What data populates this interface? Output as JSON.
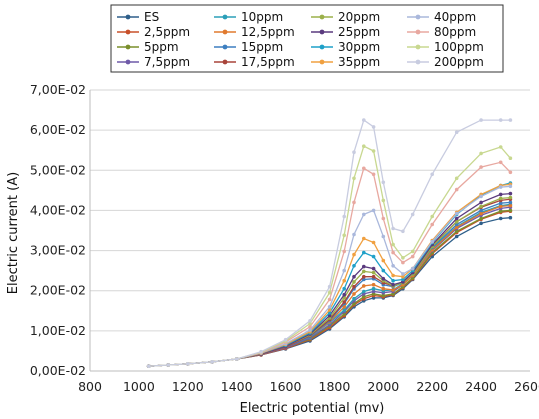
{
  "chart_data": {
    "type": "line",
    "title": "",
    "xlabel": "Electric potential (mv)",
    "ylabel": "Electric current (A)",
    "xlim": [
      800,
      2600
    ],
    "ylim": [
      0,
      0.07
    ],
    "x_ticks": [
      "800",
      "1000",
      "1200",
      "1400",
      "1600",
      "1800",
      "2000",
      "2200",
      "2400",
      "2600"
    ],
    "y_ticks": [
      "0,00E-02",
      "1,00E-02",
      "2,00E-02",
      "3,00E-02",
      "4,00E-02",
      "5,00E-02",
      "6,00E-02",
      "7,00E-02"
    ],
    "grid": "horizontal",
    "legend_placement": "top",
    "x": [
      1040,
      1120,
      1200,
      1300,
      1400,
      1500,
      1600,
      1700,
      1780,
      1840,
      1880,
      1920,
      1960,
      2000,
      2040,
      2080,
      2120,
      2200,
      2300,
      2400,
      2480,
      2520
    ],
    "series": [
      {
        "name": "ES",
        "color": "#2e5f8a",
        "values": [
          0.0012,
          0.0015,
          0.0018,
          0.0023,
          0.003,
          0.004,
          0.0055,
          0.0075,
          0.0105,
          0.0135,
          0.016,
          0.0175,
          0.0182,
          0.0182,
          0.0188,
          0.0205,
          0.0228,
          0.0285,
          0.0335,
          0.0368,
          0.038,
          0.0382
        ]
      },
      {
        "name": "2,5ppm",
        "color": "#c8502a",
        "values": [
          0.0012,
          0.0015,
          0.0018,
          0.0023,
          0.003,
          0.004,
          0.0056,
          0.0078,
          0.0108,
          0.0138,
          0.0165,
          0.018,
          0.0188,
          0.0185,
          0.019,
          0.0208,
          0.023,
          0.0292,
          0.0345,
          0.0378,
          0.0395,
          0.0398
        ]
      },
      {
        "name": "5ppm",
        "color": "#7a8f2c",
        "values": [
          0.0012,
          0.0015,
          0.0018,
          0.0023,
          0.003,
          0.0041,
          0.0058,
          0.008,
          0.0112,
          0.0142,
          0.0168,
          0.0185,
          0.0192,
          0.0188,
          0.0192,
          0.021,
          0.0232,
          0.0295,
          0.0348,
          0.038,
          0.0398,
          0.04
        ]
      },
      {
        "name": "7,5ppm",
        "color": "#6f5aa8",
        "values": [
          0.0012,
          0.0015,
          0.0018,
          0.0023,
          0.003,
          0.0041,
          0.0058,
          0.0082,
          0.0115,
          0.0148,
          0.0175,
          0.0192,
          0.0198,
          0.0195,
          0.0198,
          0.0215,
          0.0238,
          0.03,
          0.0355,
          0.0388,
          0.0405,
          0.0408
        ]
      },
      {
        "name": "10ppm",
        "color": "#2b9fb8",
        "values": [
          0.0012,
          0.0015,
          0.0018,
          0.0023,
          0.003,
          0.0042,
          0.006,
          0.0085,
          0.012,
          0.0152,
          0.018,
          0.0198,
          0.0205,
          0.02,
          0.0202,
          0.0218,
          0.024,
          0.0305,
          0.036,
          0.0395,
          0.0412,
          0.0415
        ]
      },
      {
        "name": "12,5ppm",
        "color": "#e07a2e",
        "values": [
          0.0012,
          0.0015,
          0.0018,
          0.0023,
          0.003,
          0.0042,
          0.006,
          0.0086,
          0.0122,
          0.016,
          0.0192,
          0.0212,
          0.0215,
          0.0205,
          0.0202,
          0.0215,
          0.0238,
          0.0302,
          0.0358,
          0.0392,
          0.041,
          0.0412
        ]
      },
      {
        "name": "15ppm",
        "color": "#3d7fc0",
        "values": [
          0.0012,
          0.0015,
          0.0018,
          0.0023,
          0.003,
          0.0042,
          0.006,
          0.0086,
          0.0125,
          0.0168,
          0.0205,
          0.0228,
          0.023,
          0.0215,
          0.021,
          0.022,
          0.0242,
          0.0308,
          0.0365,
          0.04,
          0.0418,
          0.042
        ]
      },
      {
        "name": "17,5ppm",
        "color": "#a8443a",
        "values": [
          0.0012,
          0.0015,
          0.0018,
          0.0023,
          0.003,
          0.0042,
          0.006,
          0.0088,
          0.0128,
          0.0172,
          0.021,
          0.0235,
          0.0235,
          0.022,
          0.0212,
          0.0222,
          0.0245,
          0.0312,
          0.0372,
          0.0408,
          0.0425,
          0.0428
        ]
      },
      {
        "name": "20ppm",
        "color": "#9bb04a",
        "values": [
          0.0012,
          0.0015,
          0.0018,
          0.0023,
          0.003,
          0.0043,
          0.0062,
          0.009,
          0.0132,
          0.0182,
          0.0222,
          0.0248,
          0.0245,
          0.0225,
          0.0212,
          0.022,
          0.0242,
          0.031,
          0.0372,
          0.041,
          0.043,
          0.0432
        ]
      },
      {
        "name": "25ppm",
        "color": "#5a3a7e",
        "values": [
          0.0012,
          0.0015,
          0.0018,
          0.0023,
          0.003,
          0.0043,
          0.0062,
          0.0092,
          0.0138,
          0.019,
          0.0235,
          0.026,
          0.0255,
          0.023,
          0.0215,
          0.0222,
          0.0245,
          0.0315,
          0.038,
          0.042,
          0.044,
          0.0442
        ]
      },
      {
        "name": "30ppm",
        "color": "#1fa0c8",
        "values": [
          0.0012,
          0.0015,
          0.0018,
          0.0023,
          0.003,
          0.0044,
          0.0064,
          0.0095,
          0.0145,
          0.0205,
          0.0262,
          0.0295,
          0.0285,
          0.025,
          0.0225,
          0.0228,
          0.025,
          0.032,
          0.039,
          0.0438,
          0.0462,
          0.0468
        ]
      },
      {
        "name": "35ppm",
        "color": "#f0a040",
        "values": [
          0.0012,
          0.0015,
          0.0018,
          0.0023,
          0.003,
          0.0044,
          0.0066,
          0.0098,
          0.0152,
          0.0225,
          0.029,
          0.033,
          0.032,
          0.0275,
          0.0238,
          0.0235,
          0.0255,
          0.0325,
          0.0395,
          0.044,
          0.0462,
          0.0465
        ]
      },
      {
        "name": "40ppm",
        "color": "#aab8dc",
        "values": [
          0.0012,
          0.0015,
          0.0018,
          0.0023,
          0.003,
          0.0045,
          0.0068,
          0.0102,
          0.016,
          0.025,
          0.034,
          0.039,
          0.04,
          0.0335,
          0.0262,
          0.0242,
          0.0255,
          0.0322,
          0.0392,
          0.0435,
          0.0458,
          0.046
        ]
      },
      {
        "name": "80ppm",
        "color": "#e8a8a0",
        "values": [
          0.0012,
          0.0015,
          0.0018,
          0.0023,
          0.003,
          0.0046,
          0.0072,
          0.011,
          0.0178,
          0.0298,
          0.042,
          0.0505,
          0.049,
          0.038,
          0.0295,
          0.027,
          0.0285,
          0.0365,
          0.0452,
          0.0508,
          0.052,
          0.0495
        ]
      },
      {
        "name": "100ppm",
        "color": "#c8d890",
        "values": [
          0.0012,
          0.0015,
          0.0018,
          0.0023,
          0.003,
          0.0047,
          0.0075,
          0.0118,
          0.0195,
          0.0338,
          0.048,
          0.056,
          0.0548,
          0.0425,
          0.0315,
          0.0282,
          0.0298,
          0.0385,
          0.048,
          0.0542,
          0.0558,
          0.053
        ]
      },
      {
        "name": "200ppm",
        "color": "#c8cce0",
        "values": [
          0.0012,
          0.0015,
          0.0018,
          0.0023,
          0.003,
          0.0048,
          0.0078,
          0.0125,
          0.021,
          0.0385,
          0.0545,
          0.0625,
          0.0608,
          0.047,
          0.0355,
          0.0348,
          0.039,
          0.049,
          0.0595,
          0.0625,
          0.0625,
          0.0625
        ]
      }
    ]
  }
}
